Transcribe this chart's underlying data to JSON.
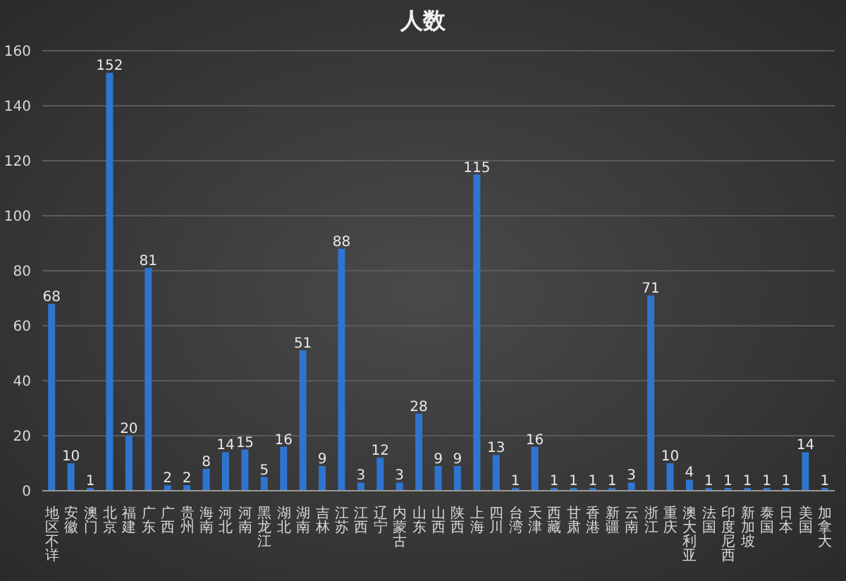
{
  "chart_data": {
    "type": "bar",
    "title": "人数",
    "categories": [
      "地区不详",
      "安徽",
      "澳门",
      "北京",
      "福建",
      "广东",
      "广西",
      "贵州",
      "海南",
      "河北",
      "河南",
      "黑龙江",
      "湖北",
      "湖南",
      "吉林",
      "江苏",
      "江西",
      "辽宁",
      "内蒙古",
      "山东",
      "山西",
      "陕西",
      "上海",
      "四川",
      "台湾",
      "天津",
      "西藏",
      "甘肃",
      "香港",
      "新疆",
      "云南",
      "浙江",
      "重庆",
      "澳大利亚",
      "法国",
      "印度尼西",
      "新加坡",
      "泰国",
      "日本",
      "美国",
      "加拿大"
    ],
    "values": [
      68,
      10,
      1,
      152,
      20,
      81,
      2,
      2,
      8,
      14,
      15,
      5,
      16,
      51,
      9,
      88,
      3,
      12,
      3,
      28,
      9,
      9,
      115,
      13,
      1,
      16,
      1,
      1,
      1,
      1,
      3,
      71,
      10,
      4,
      1,
      1,
      1,
      1,
      1,
      14,
      1
    ],
    "color": "#2e75cf",
    "ylim": [
      0,
      160
    ],
    "yticks": [
      0,
      20,
      40,
      60,
      80,
      100,
      120,
      140,
      160
    ],
    "grid": "y",
    "data_labels": true
  }
}
